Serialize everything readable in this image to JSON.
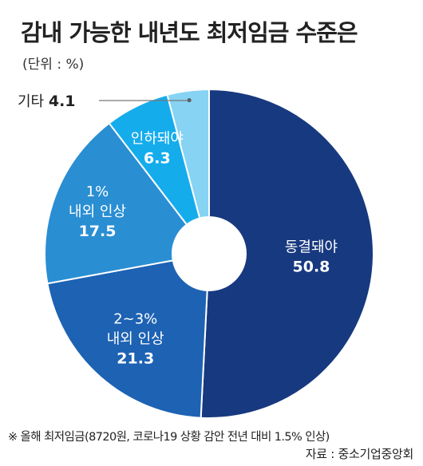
{
  "title": "감내 가능한 내년도 최저임금 수준은",
  "unit": "(단위 : %)",
  "note": "※ 올해 최저임금(8720원, 코로나19 상황 감안 전년 대비 1.5% 인상)",
  "source": "자료 : 중소기업중앙회",
  "chart_data": {
    "type": "pie",
    "subtype": "donut",
    "title": "감내 가능한 내년도 최저임금 수준은",
    "unit": "%",
    "slices": [
      {
        "lines": [
          "동결돼야"
        ],
        "value": 50.8,
        "color": "#17397f"
      },
      {
        "lines": [
          "2~3%",
          "내외 인상"
        ],
        "value": 21.3,
        "color": "#1d62b3"
      },
      {
        "lines": [
          "1%",
          "내외 인상"
        ],
        "value": 17.5,
        "color": "#2a8ed3"
      },
      {
        "lines": [
          "인하돼야"
        ],
        "value": 6.3,
        "color": "#15acec"
      },
      {
        "lines": [
          "기타"
        ],
        "value": 4.1,
        "color": "#86d3f3"
      }
    ]
  }
}
